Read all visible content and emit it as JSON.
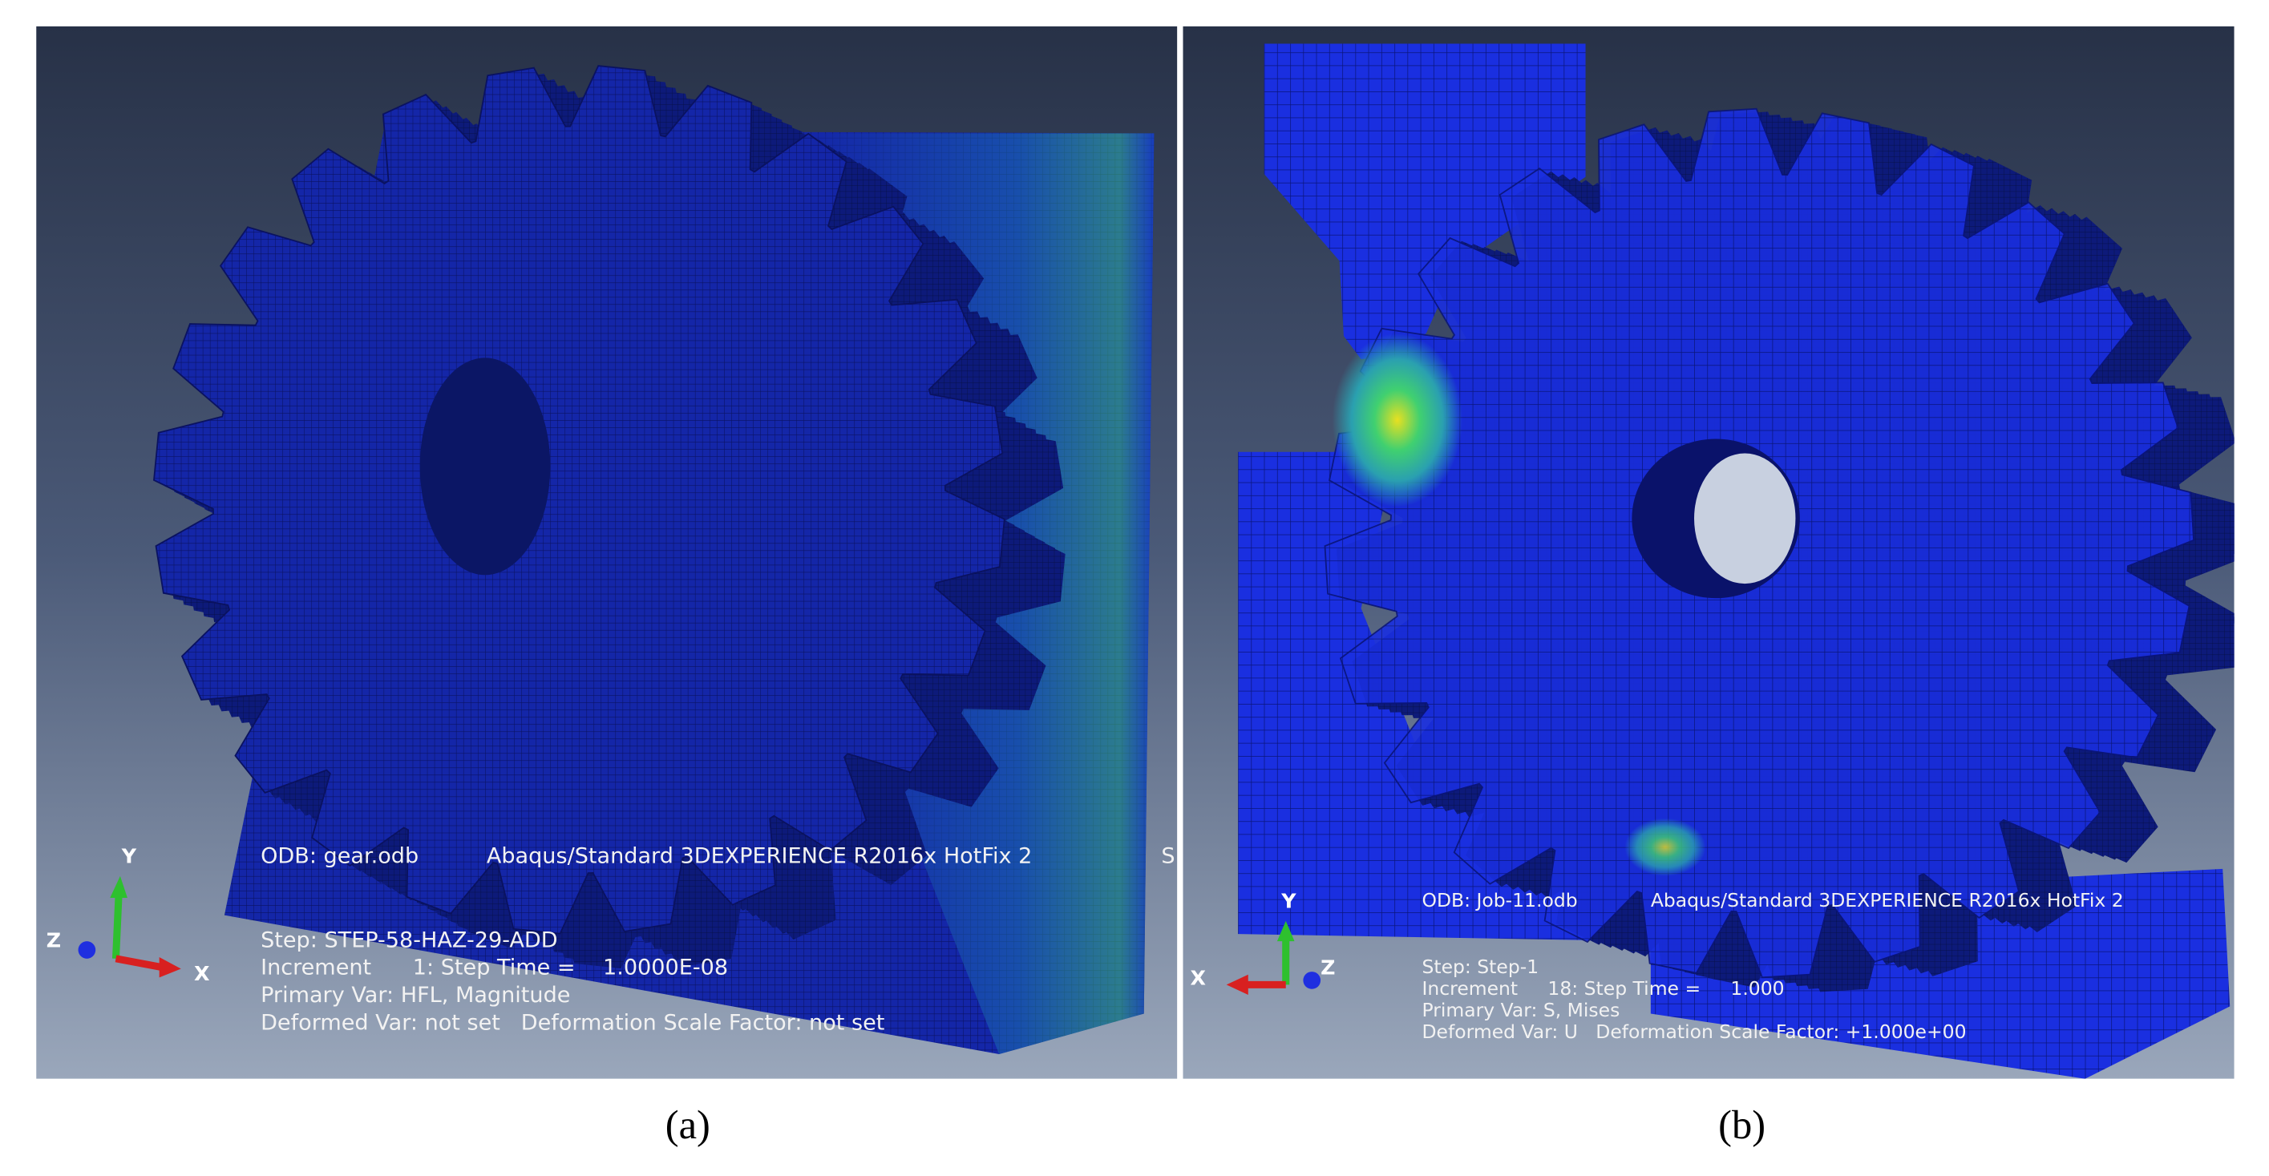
{
  "panels": [
    {
      "label": "(a)",
      "axes": {
        "y": "Y",
        "z": "Z",
        "x": "X"
      },
      "odb": "ODB: gear.odb",
      "product": "Abaqus/Standard 3DEXPERIENCE R2016x HotFix 2",
      "cut": "S",
      "step": "Step: STEP-58-HAZ-29-ADD",
      "increment": "Increment      1: Step Time =    1.0000E-08",
      "primary_var": "Primary Var: HFL, Magnitude",
      "deformed_var": "Deformed Var: not set   Deformation Scale Factor: not set"
    },
    {
      "label": "(b)",
      "axes": {
        "y": "Y",
        "z": "Z",
        "x": "X"
      },
      "odb": "ODB: Job-11.odb",
      "product": "Abaqus/Standard 3DEXPERIENCE R2016x HotFix 2",
      "step": "Step: Step-1",
      "increment": "Increment     18: Step Time =     1.000",
      "primary_var": "Primary Var: S, Mises",
      "deformed_var": "Deformed Var: U   Deformation Scale Factor: +1.000e+00"
    }
  ]
}
